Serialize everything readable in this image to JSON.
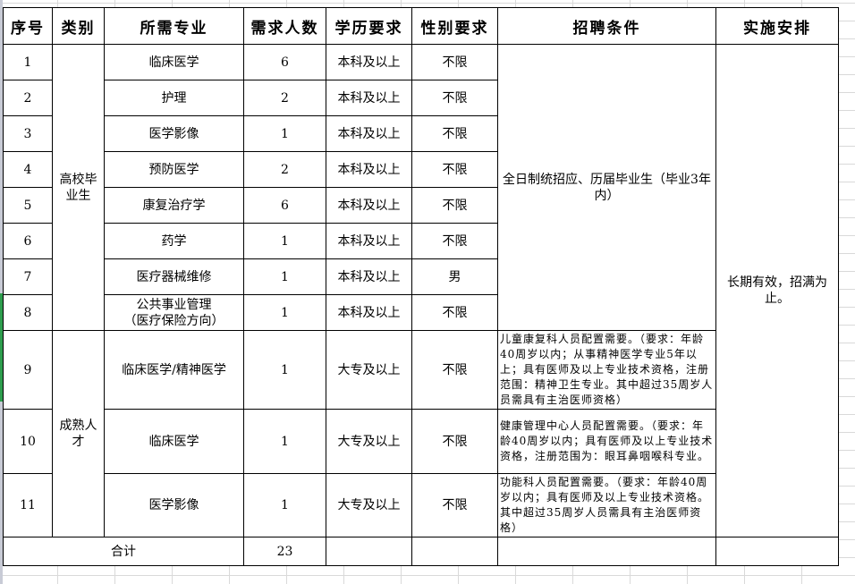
{
  "headers": [
    "序号",
    "类别",
    "所需专业",
    "需求人数",
    "学历要求",
    "性别要求",
    "招聘条件",
    "实施安排"
  ],
  "categories": {
    "graduates": "高校毕业生",
    "experienced": "成熟人才"
  },
  "rows": [
    {
      "no": "1",
      "major": "临床医学",
      "count": "6",
      "edu": "本科及以上",
      "gender": "不限"
    },
    {
      "no": "2",
      "major": "护理",
      "count": "2",
      "edu": "本科及以上",
      "gender": "不限"
    },
    {
      "no": "3",
      "major": "医学影像",
      "count": "1",
      "edu": "本科及以上",
      "gender": "不限"
    },
    {
      "no": "4",
      "major": "预防医学",
      "count": "2",
      "edu": "本科及以上",
      "gender": "不限"
    },
    {
      "no": "5",
      "major": "康复治疗学",
      "count": "6",
      "edu": "本科及以上",
      "gender": "不限"
    },
    {
      "no": "6",
      "major": "药学",
      "count": "1",
      "edu": "本科及以上",
      "gender": "不限"
    },
    {
      "no": "7",
      "major": "医疗器械维修",
      "count": "1",
      "edu": "本科及以上",
      "gender": "男"
    },
    {
      "no": "8",
      "major": "公共事业管理\n（医疗保险方向）",
      "count": "1",
      "edu": "本科及以上",
      "gender": "不限"
    },
    {
      "no": "9",
      "major": "临床医学/精神医学",
      "count": "1",
      "edu": "大专及以上",
      "gender": "不限",
      "cond": "儿童康复科人员配置需要。（要求：年龄40周岁以内；从事精神医学专业5年以上；具有医师及以上专业技术资格，注册范围：精神卫生专业。其中超过35周岁人员需具有主治医师资格）"
    },
    {
      "no": "10",
      "major": "临床医学",
      "count": "1",
      "edu": "大专及以上",
      "gender": "不限",
      "cond": "健康管理中心人员配置需要。（要求：年龄40周岁以内；具有医师及以上专业技术资格，注册范围为：眼耳鼻咽喉科专业。"
    },
    {
      "no": "11",
      "major": "医学影像",
      "count": "1",
      "edu": "大专及以上",
      "gender": "不限",
      "cond": "功能科人员配置需要。（要求：年龄40周岁以内；具有医师及以上专业技术资格。其中超过35周岁人员需具有主治医师资格）"
    }
  ],
  "graduate_condition": "全日制统招应、历届毕业生（毕业3年内）",
  "arrangement": "长期有效，招满为止。",
  "total": {
    "label": "合计",
    "count": "23"
  }
}
